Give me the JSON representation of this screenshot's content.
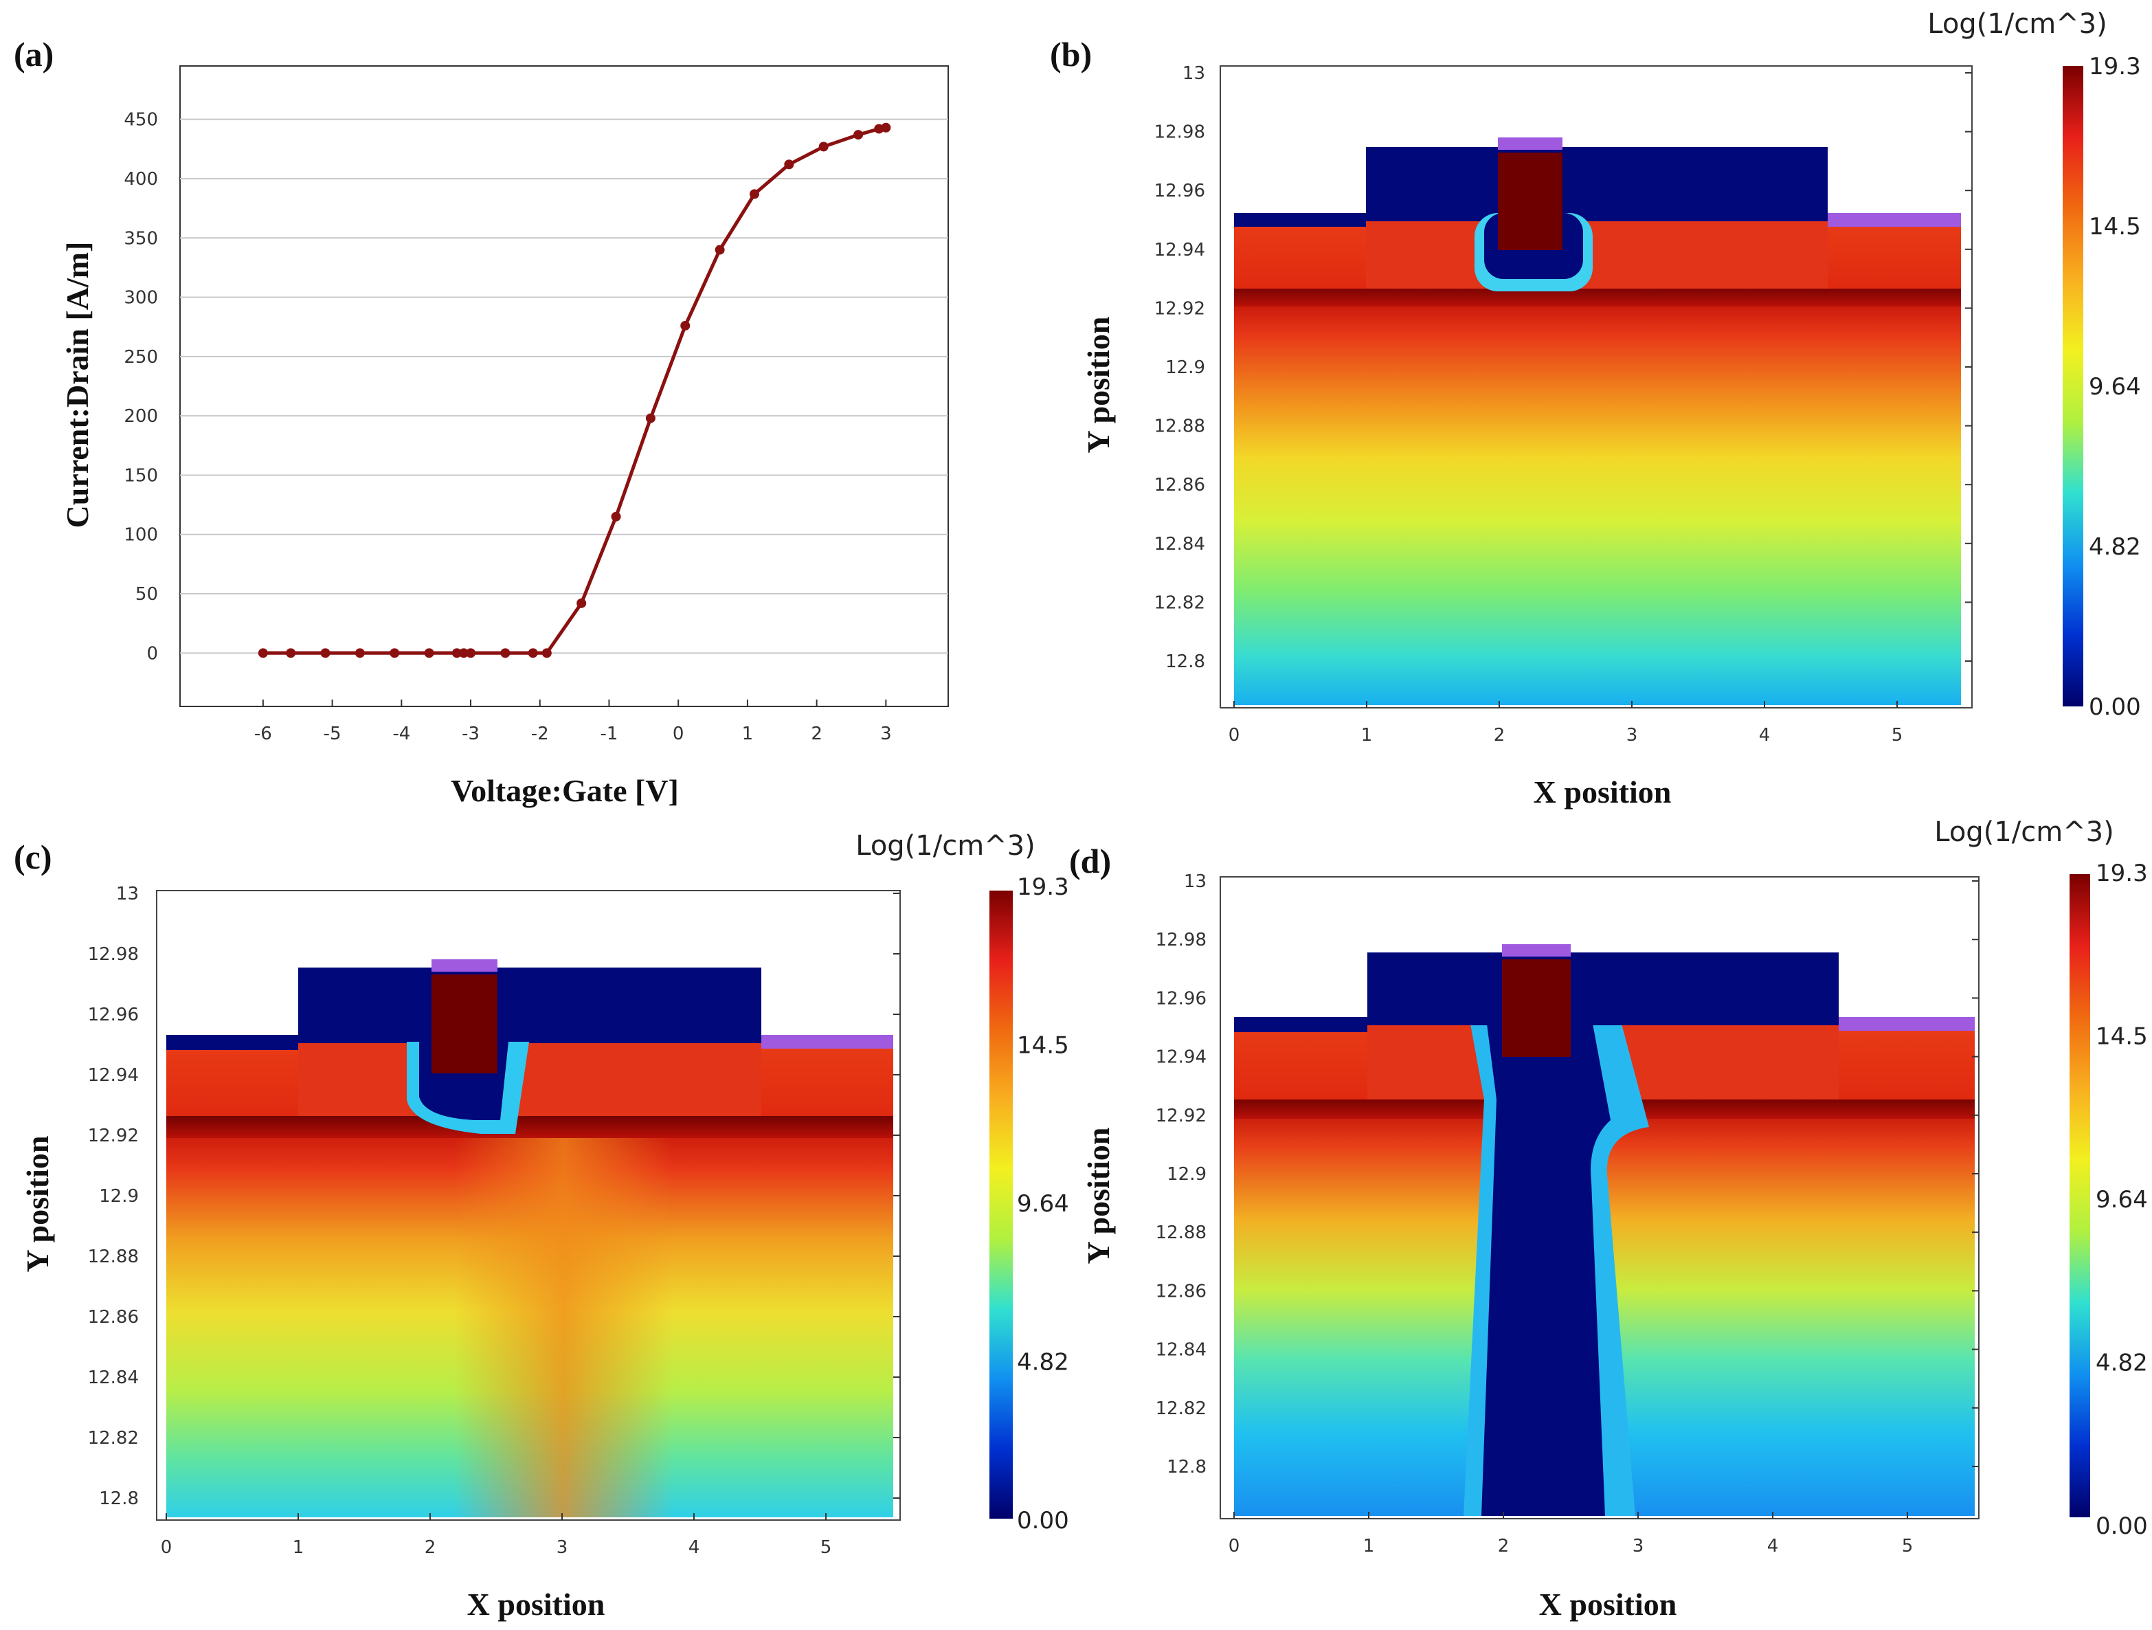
{
  "panels": {
    "a": {
      "label": "(a)"
    },
    "b": {
      "label": "(b)"
    },
    "c": {
      "label": "(c)"
    },
    "d": {
      "label": "(d)"
    }
  },
  "colorbar": {
    "unit": "Log(1/cm^3)",
    "ticks": [
      "19.3",
      "14.5",
      "9.64",
      "4.82",
      "0.00"
    ],
    "colors": [
      "#7a0000",
      "#e8201a",
      "#f06a10",
      "#f8b020",
      "#f2f020",
      "#b0f040",
      "#30e0d0",
      "#1090f0",
      "#0030d0",
      "#00006a"
    ]
  },
  "colors": {
    "curve": "#8b1010",
    "grid": "#c8c8c8",
    "axis": "#333333",
    "deep_blue": "#00087a",
    "gate_dark_red": "#6e0000",
    "purple_contact": "#a05ae0"
  },
  "chart_data": [
    {
      "panel": "a",
      "type": "line",
      "xlabel": "Voltage:Gate [V]",
      "ylabel": "Current:Drain [A/m]",
      "xlim": [
        -7.2,
        3.9
      ],
      "ylim": [
        -45,
        495
      ],
      "xticks": [
        -6,
        -5,
        -4,
        -3,
        -2,
        -1,
        0,
        1,
        2,
        3
      ],
      "yticks": [
        0,
        50,
        100,
        150,
        200,
        250,
        300,
        350,
        400,
        450
      ],
      "grid": true,
      "series": [
        {
          "x": [
            -6,
            -5.6,
            -5.1,
            -4.6,
            -4.1,
            -3.6,
            -3.2,
            -3.1,
            -3.0,
            -2.5,
            -2.1,
            -1.9,
            -1.4,
            -0.9,
            -0.4,
            0.1,
            0.6,
            1.1,
            1.6,
            2.1,
            2.6,
            2.9,
            3.0
          ],
          "y": [
            0,
            0,
            0,
            0,
            0,
            0,
            0,
            0,
            0,
            0,
            0,
            0,
            42,
            115,
            198,
            276,
            340,
            387,
            412,
            427,
            437,
            442,
            443
          ]
        }
      ]
    },
    {
      "panel": "b",
      "type": "heatmap",
      "xlabel": "X position",
      "ylabel": "Y position",
      "xticks": [
        0,
        1,
        2,
        3,
        4,
        5
      ],
      "yticks": [
        "13",
        "12.98",
        "12.96",
        "12.94",
        "12.92",
        "12.9",
        "12.88",
        "12.86",
        "12.84",
        "12.82",
        "12.8"
      ],
      "colorbar_title": "Log(1/cm^3)",
      "colorbar_range": [
        0.0,
        19.3
      ],
      "colorbar_ticks": [
        19.3,
        14.5,
        9.64,
        4.82,
        0.0
      ],
      "grid": false
    },
    {
      "panel": "c",
      "type": "heatmap",
      "xlabel": "X position",
      "ylabel": "Y position",
      "xticks": [
        0,
        1,
        2,
        3,
        4,
        5
      ],
      "yticks": [
        "13",
        "12.98",
        "12.96",
        "12.94",
        "12.92",
        "12.9",
        "12.88",
        "12.86",
        "12.84",
        "12.82",
        "12.8"
      ],
      "colorbar_title": "Log(1/cm^3)",
      "colorbar_range": [
        0.0,
        19.3
      ],
      "colorbar_ticks": [
        19.3,
        14.5,
        9.64,
        4.82,
        0.0
      ],
      "grid": false
    },
    {
      "panel": "d",
      "type": "heatmap",
      "xlabel": "X position",
      "ylabel": "Y position",
      "xticks": [
        0,
        1,
        2,
        3,
        4,
        5
      ],
      "yticks": [
        "13",
        "12.98",
        "12.96",
        "12.94",
        "12.92",
        "12.9",
        "12.88",
        "12.86",
        "12.84",
        "12.82",
        "12.8"
      ],
      "colorbar_title": "Log(1/cm^3)",
      "colorbar_range": [
        0.0,
        19.3
      ],
      "colorbar_ticks": [
        19.3,
        14.5,
        9.64,
        4.82,
        0.0
      ],
      "grid": false
    }
  ]
}
